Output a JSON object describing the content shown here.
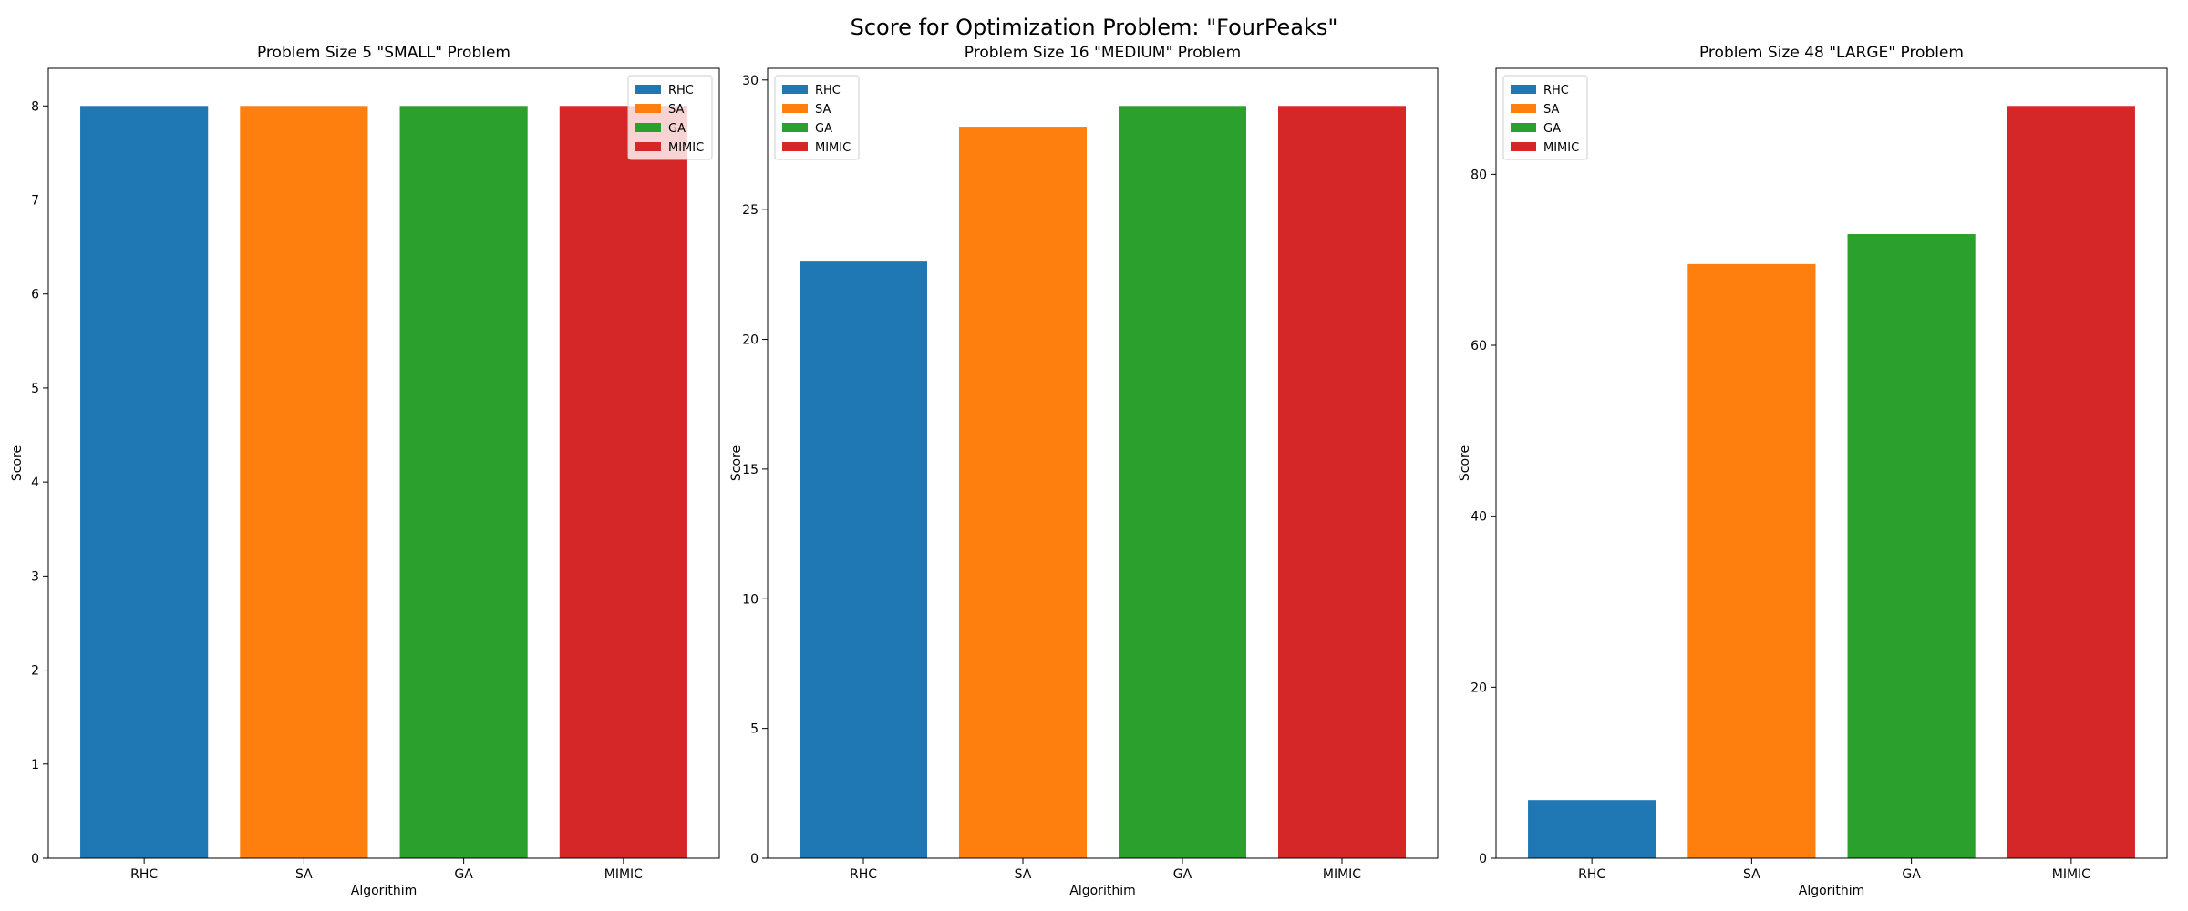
{
  "figure": {
    "title": "Score for Optimization Problem: \"FourPeaks\""
  },
  "colors": {
    "RHC": "#1f77b4",
    "SA": "#ff7f0e",
    "GA": "#2ca02c",
    "MIMIC": "#d62728"
  },
  "chart_data": [
    {
      "type": "bar",
      "title": "Problem Size 5 \"SMALL\" Problem",
      "xlabel": "Algorithim",
      "ylabel": "Score",
      "categories": [
        "RHC",
        "SA",
        "GA",
        "MIMIC"
      ],
      "values": [
        8,
        8,
        8,
        8
      ],
      "ylim": [
        0,
        8.4
      ],
      "yticks": [
        0,
        1,
        2,
        3,
        4,
        5,
        6,
        7,
        8
      ],
      "legend": [
        "RHC",
        "SA",
        "GA",
        "MIMIC"
      ],
      "legend_loc": "upper right",
      "grid": false
    },
    {
      "type": "bar",
      "title": "Problem Size 16 \"MEDIUM\" Problem",
      "xlabel": "Algorithim",
      "ylabel": "Score",
      "categories": [
        "RHC",
        "SA",
        "GA",
        "MIMIC"
      ],
      "values": [
        23,
        28.2,
        29,
        29
      ],
      "ylim": [
        0,
        30.45
      ],
      "yticks": [
        0,
        5,
        10,
        15,
        20,
        25,
        30
      ],
      "legend": [
        "RHC",
        "SA",
        "GA",
        "MIMIC"
      ],
      "legend_loc": "upper left",
      "grid": false
    },
    {
      "type": "bar",
      "title": "Problem Size 48 \"LARGE\" Problem",
      "xlabel": "Algorithim",
      "ylabel": "Score",
      "categories": [
        "RHC",
        "SA",
        "GA",
        "MIMIC"
      ],
      "values": [
        6.8,
        69.5,
        73,
        88
      ],
      "ylim": [
        0,
        92.4
      ],
      "yticks": [
        0,
        20,
        40,
        60,
        80
      ],
      "legend": [
        "RHC",
        "SA",
        "GA",
        "MIMIC"
      ],
      "legend_loc": "upper left",
      "grid": false
    }
  ]
}
